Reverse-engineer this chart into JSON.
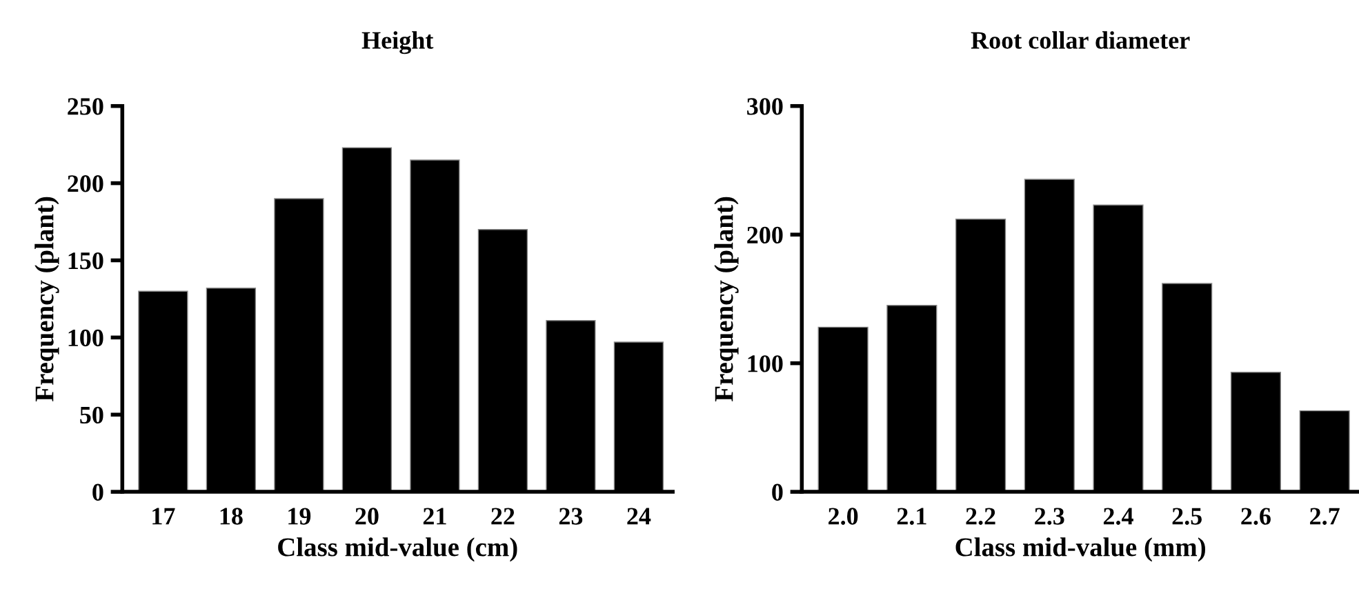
{
  "chart_data": [
    {
      "type": "bar",
      "title": "Height",
      "xlabel": "Class mid-value (cm)",
      "ylabel": "Frequency (plant)",
      "categories": [
        "17",
        "18",
        "19",
        "20",
        "21",
        "22",
        "23",
        "24"
      ],
      "values": [
        130,
        132,
        190,
        223,
        215,
        170,
        111,
        97
      ],
      "color": "#000000",
      "ylim": [
        0,
        250
      ],
      "yticks": [
        0,
        50,
        100,
        150,
        200,
        250
      ],
      "grid": false,
      "legend": false
    },
    {
      "type": "bar",
      "title": "Root collar diameter",
      "xlabel": "Class mid-value (mm)",
      "ylabel": "Frequency (plant)",
      "categories": [
        "2.0",
        "2.1",
        "2.2",
        "2.3",
        "2.4",
        "2.5",
        "2.6",
        "2.7"
      ],
      "values": [
        128,
        145,
        212,
        243,
        223,
        162,
        93,
        63
      ],
      "color": "#000000",
      "ylim": [
        0,
        300
      ],
      "yticks": [
        0,
        100,
        200,
        300
      ],
      "grid": false,
      "legend": false
    }
  ]
}
